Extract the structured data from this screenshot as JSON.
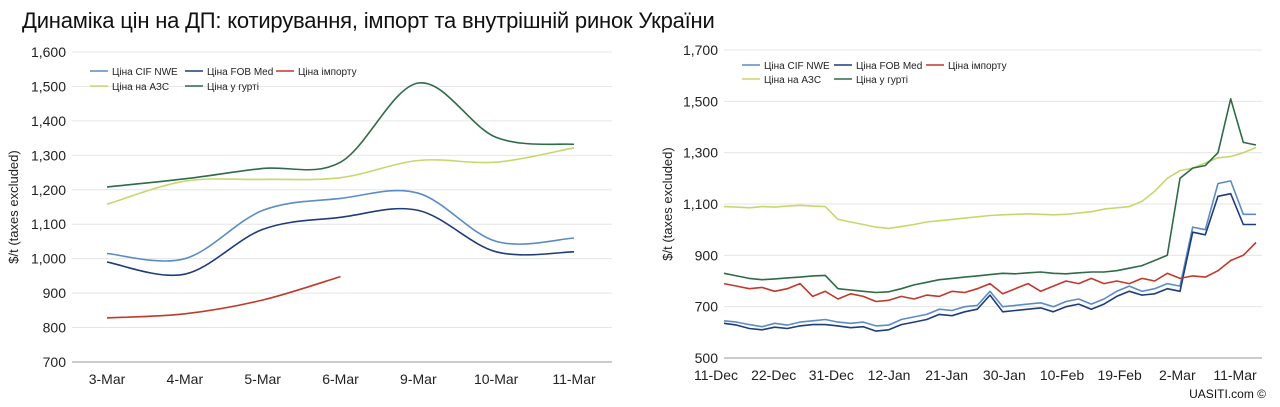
{
  "title": "Динаміка цін на ДП: котирування, імпорт та внутрішній ринок України",
  "credit": "UASITI.com ©",
  "chart_data": [
    {
      "type": "line",
      "categories": [
        "3-Mar",
        "4-Mar",
        "5-Mar",
        "6-Mar",
        "9-Mar",
        "10-Mar",
        "11-Mar"
      ],
      "ylabel": "$/t (taxes excluded)",
      "ylim": [
        700,
        1600
      ],
      "yticks": [
        700,
        800,
        900,
        1000,
        1100,
        1200,
        1300,
        1400,
        1500,
        1600
      ],
      "ytick_labels": [
        "700",
        "800",
        "900",
        "1,000",
        "1,100",
        "1,200",
        "1,300",
        "1,400",
        "1,500",
        "1,600"
      ],
      "legend_position": "top-left",
      "series": [
        {
          "name": "Ціна CIF NWE",
          "color": "#5b8cc4",
          "values": [
            1015,
            1000,
            1140,
            1175,
            1190,
            1050,
            1060
          ]
        },
        {
          "name": "Ціна FOB Med",
          "color": "#1f3d7a",
          "values": [
            990,
            955,
            1085,
            1120,
            1140,
            1020,
            1020
          ]
        },
        {
          "name": "Ціна імпорту",
          "color": "#c0392b",
          "values": [
            828,
            840,
            880,
            948,
            null,
            null,
            null
          ]
        },
        {
          "name": "Ціна на АЗС",
          "color": "#c5d86d",
          "values": [
            1158,
            1225,
            1230,
            1235,
            1285,
            1280,
            1322
          ]
        },
        {
          "name": "Ціна у гурті",
          "color": "#2e6b46",
          "values": [
            1208,
            1232,
            1262,
            1280,
            1510,
            1352,
            1332
          ]
        }
      ]
    },
    {
      "type": "line",
      "x_tick_labels": [
        "11-Dec",
        "22-Dec",
        "31-Dec",
        "12-Jan",
        "21-Jan",
        "30-Jan",
        "10-Feb",
        "19-Feb",
        "2-Mar",
        "11-Mar"
      ],
      "ylabel": "$/t (taxes excluded)",
      "ylim": [
        500,
        1700
      ],
      "yticks": [
        500,
        700,
        900,
        1100,
        1300,
        1500,
        1700
      ],
      "ytick_labels": [
        "500",
        "700",
        "900",
        "1,100",
        "1,300",
        "1,500",
        "1,700"
      ],
      "legend_position": "top-left",
      "series": [
        {
          "name": "Ціна CIF NWE",
          "color": "#5b8cc4",
          "values": [
            645,
            640,
            630,
            622,
            635,
            628,
            640,
            645,
            650,
            640,
            635,
            640,
            625,
            628,
            650,
            660,
            670,
            690,
            685,
            700,
            705,
            760,
            700,
            705,
            710,
            715,
            700,
            720,
            730,
            710,
            730,
            760,
            780,
            760,
            770,
            790,
            780,
            1010,
            1000,
            1180,
            1190,
            1060,
            1060
          ]
        },
        {
          "name": "Ціна FOB Med",
          "color": "#1f3d7a",
          "values": [
            635,
            628,
            615,
            610,
            620,
            615,
            625,
            630,
            630,
            625,
            618,
            622,
            605,
            610,
            630,
            640,
            650,
            670,
            665,
            680,
            690,
            745,
            680,
            685,
            690,
            695,
            680,
            700,
            710,
            690,
            710,
            740,
            760,
            745,
            750,
            770,
            760,
            990,
            980,
            1130,
            1140,
            1020,
            1020
          ]
        },
        {
          "name": "Ціна імпорту",
          "color": "#c0392b",
          "values": [
            790,
            780,
            770,
            775,
            760,
            770,
            790,
            740,
            760,
            730,
            750,
            740,
            720,
            725,
            740,
            730,
            745,
            740,
            760,
            755,
            770,
            790,
            750,
            770,
            790,
            760,
            780,
            800,
            790,
            810,
            790,
            800,
            790,
            810,
            800,
            830,
            810,
            820,
            815,
            840,
            880,
            900,
            950
          ]
        },
        {
          "name": "Ціна на АЗС",
          "color": "#c5d86d",
          "values": [
            1090,
            1088,
            1085,
            1090,
            1088,
            1092,
            1095,
            1092,
            1090,
            1040,
            1030,
            1020,
            1010,
            1005,
            1012,
            1020,
            1030,
            1035,
            1040,
            1045,
            1050,
            1055,
            1058,
            1060,
            1062,
            1060,
            1058,
            1060,
            1065,
            1070,
            1080,
            1085,
            1090,
            1110,
            1150,
            1200,
            1230,
            1240,
            1260,
            1280,
            1285,
            1300,
            1320
          ]
        },
        {
          "name": "Ціна у гурті",
          "color": "#2e6b46",
          "values": [
            830,
            820,
            810,
            805,
            808,
            812,
            815,
            820,
            822,
            770,
            765,
            760,
            755,
            758,
            770,
            785,
            795,
            805,
            810,
            815,
            820,
            825,
            830,
            828,
            832,
            835,
            830,
            828,
            832,
            835,
            835,
            840,
            850,
            860,
            880,
            900,
            1200,
            1240,
            1250,
            1300,
            1510,
            1340,
            1330
          ]
        }
      ]
    }
  ]
}
